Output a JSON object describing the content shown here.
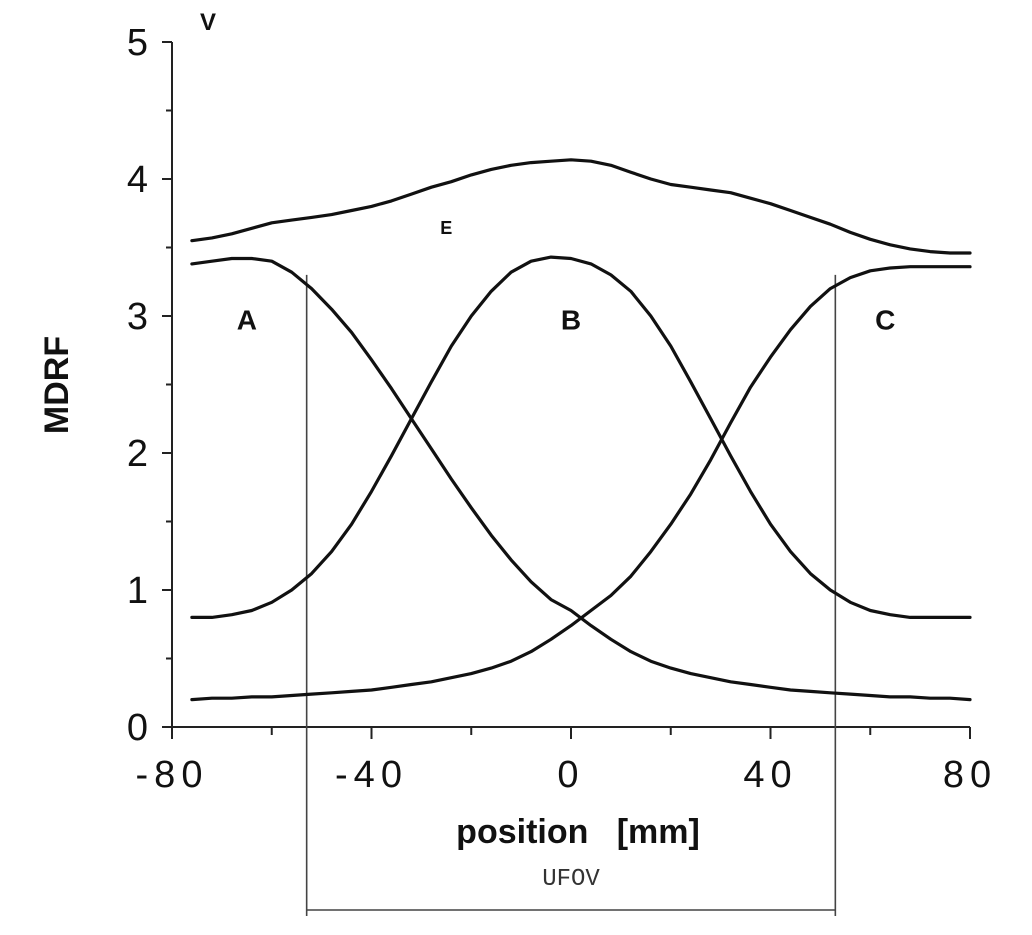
{
  "chart_data": {
    "type": "line",
    "xlabel": "position   [mm]",
    "ylabel": "MDRF",
    "y_unit": "V",
    "xlim": [
      -80,
      80
    ],
    "ylim": [
      0,
      5
    ],
    "xticks": [
      -80,
      -40,
      0,
      40,
      80
    ],
    "xtick_labels": [
      "-80",
      "-40",
      "0",
      "40",
      "80"
    ],
    "yticks": [
      0,
      1,
      2,
      3,
      4,
      5
    ],
    "ytick_labels": [
      "0",
      "1",
      "2",
      "3",
      "4",
      "5"
    ],
    "x": [
      -76,
      -72,
      -68,
      -64,
      -60,
      -56,
      -52,
      -48,
      -44,
      -40,
      -36,
      -32,
      -28,
      -24,
      -20,
      -16,
      -12,
      -8,
      -4,
      0,
      4,
      8,
      12,
      16,
      20,
      24,
      28,
      32,
      36,
      40,
      44,
      48,
      52,
      56,
      60,
      64,
      68,
      72,
      76,
      80
    ],
    "series": [
      {
        "name": "A",
        "values": [
          3.38,
          3.4,
          3.42,
          3.42,
          3.4,
          3.32,
          3.2,
          3.05,
          2.88,
          2.68,
          2.47,
          2.25,
          2.03,
          1.81,
          1.6,
          1.4,
          1.22,
          1.06,
          0.93,
          0.85,
          0.74,
          0.64,
          0.55,
          0.48,
          0.43,
          0.39,
          0.36,
          0.33,
          0.31,
          0.29,
          0.27,
          0.26,
          0.25,
          0.24,
          0.23,
          0.22,
          0.22,
          0.21,
          0.21,
          0.2
        ]
      },
      {
        "name": "B",
        "values": [
          0.8,
          0.8,
          0.82,
          0.85,
          0.91,
          1.0,
          1.12,
          1.28,
          1.48,
          1.72,
          1.98,
          2.25,
          2.52,
          2.78,
          3.0,
          3.18,
          3.32,
          3.4,
          3.43,
          3.42,
          3.38,
          3.3,
          3.18,
          3.0,
          2.78,
          2.52,
          2.25,
          1.98,
          1.72,
          1.48,
          1.28,
          1.12,
          1.0,
          0.91,
          0.85,
          0.82,
          0.8,
          0.8,
          0.8,
          0.8
        ]
      },
      {
        "name": "C",
        "values": [
          0.2,
          0.21,
          0.21,
          0.22,
          0.22,
          0.23,
          0.24,
          0.25,
          0.26,
          0.27,
          0.29,
          0.31,
          0.33,
          0.36,
          0.39,
          0.43,
          0.48,
          0.55,
          0.64,
          0.74,
          0.85,
          0.96,
          1.1,
          1.28,
          1.48,
          1.7,
          1.95,
          2.22,
          2.48,
          2.7,
          2.9,
          3.07,
          3.2,
          3.28,
          3.33,
          3.35,
          3.36,
          3.36,
          3.36,
          3.36
        ]
      },
      {
        "name": "E",
        "values": [
          3.55,
          3.57,
          3.6,
          3.64,
          3.68,
          3.7,
          3.72,
          3.74,
          3.77,
          3.8,
          3.84,
          3.89,
          3.94,
          3.98,
          4.03,
          4.07,
          4.1,
          4.12,
          4.13,
          4.14,
          4.13,
          4.1,
          4.05,
          4.0,
          3.96,
          3.94,
          3.92,
          3.9,
          3.86,
          3.82,
          3.77,
          3.72,
          3.67,
          3.61,
          3.56,
          3.52,
          3.49,
          3.47,
          3.46,
          3.46
        ]
      }
    ],
    "annotations": {
      "A": {
        "text": "A",
        "x": -65,
        "y": 2.9
      },
      "B": {
        "text": "B",
        "x": 0,
        "y": 2.9
      },
      "C": {
        "text": "C",
        "x": 63,
        "y": 2.9
      },
      "E": {
        "text": "E",
        "x": -25,
        "y": 3.6
      }
    },
    "ufov": {
      "label": "UFOV",
      "x_start": -53,
      "x_end": 53
    }
  }
}
